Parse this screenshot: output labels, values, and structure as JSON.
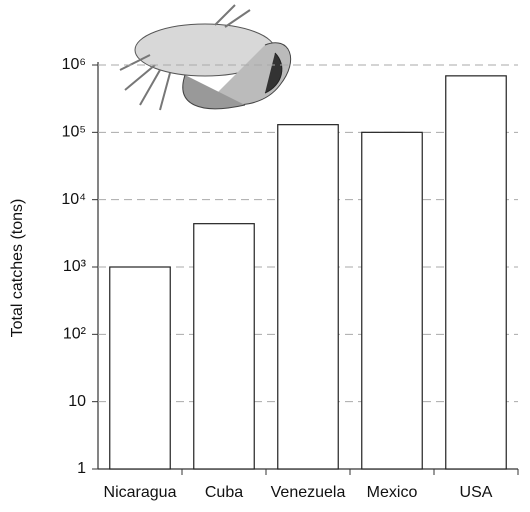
{
  "chart_data": {
    "type": "bar",
    "y_label": "Total catches (tons)",
    "categories": [
      "Nicaragua",
      "Cuba",
      "Venezuela",
      "Mexico",
      "USA"
    ],
    "values": [
      1000,
      4400,
      130000,
      100000,
      690000
    ],
    "color": "#ffffff",
    "log_scale": true,
    "grid": true,
    "ylim": [
      1,
      1000000
    ],
    "yticks": [
      1,
      10,
      {
        "value": 100,
        "label": "10²"
      },
      {
        "value": 1000,
        "label": "10³"
      },
      {
        "value": 10000,
        "label": "10⁴"
      },
      {
        "value": 100000,
        "label": "10⁵"
      },
      {
        "value": 1000000,
        "label": "10⁶"
      }
    ]
  }
}
